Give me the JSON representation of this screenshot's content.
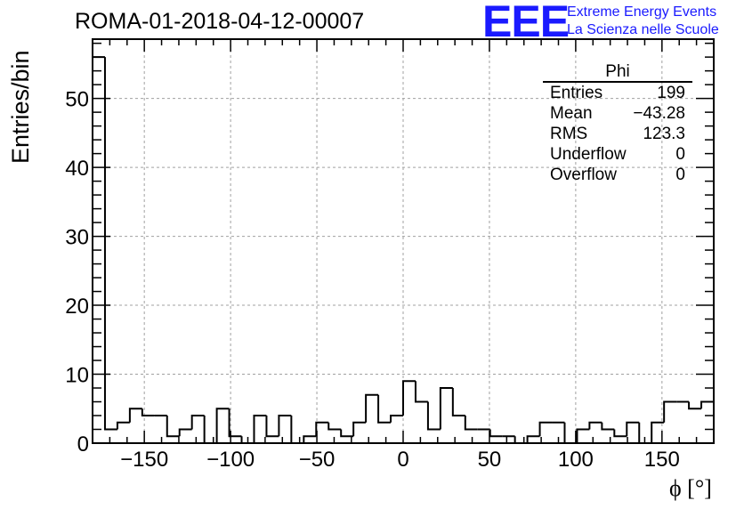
{
  "header": {
    "run_title": "ROMA-01-2018-04-12-00007",
    "logo": "EEE",
    "logo_line1": "Extreme Energy Events",
    "logo_line2": "La Scienza nelle Scuole"
  },
  "stats_box": {
    "name": "Phi",
    "rows": [
      {
        "label": "Entries",
        "value": "199"
      },
      {
        "label": "Mean",
        "value": "−43.28"
      },
      {
        "label": "RMS",
        "value": "123.3"
      },
      {
        "label": "Underflow",
        "value": "0"
      },
      {
        "label": "Overflow",
        "value": "0"
      }
    ]
  },
  "chart_data": {
    "type": "bar",
    "title": "ROMA-01-2018-04-12-00007",
    "xlabel": "ϕ [°]",
    "ylabel": "Entries/bin",
    "xlim": [
      -180,
      180
    ],
    "ylim": [
      0,
      58.6
    ],
    "bin_width": 7.2,
    "bin_edges_start": -180,
    "values": [
      56,
      2,
      3,
      5,
      4,
      4,
      1,
      2,
      4,
      0,
      5,
      1,
      0,
      4,
      1,
      4,
      0,
      1,
      3,
      2,
      1,
      3,
      7,
      3,
      4,
      9,
      6,
      2,
      8,
      4,
      2,
      2,
      1,
      1,
      0,
      1,
      3,
      3,
      0,
      2,
      3,
      2,
      1,
      3,
      0,
      3,
      6,
      6,
      5,
      6
    ],
    "x_ticks": [
      -150,
      -100,
      -50,
      0,
      50,
      100,
      150
    ],
    "x_tick_labels": [
      "−150",
      "−100",
      "−50",
      "0",
      "50",
      "100",
      "150"
    ],
    "y_ticks": [
      0,
      10,
      20,
      30,
      40,
      50
    ],
    "y_tick_labels": [
      "0",
      "10",
      "20",
      "30",
      "40",
      "50"
    ],
    "grid": true,
    "line_color": "#000000",
    "grid_color": "#a0a0a0",
    "brand_color": "#1a1aff"
  }
}
